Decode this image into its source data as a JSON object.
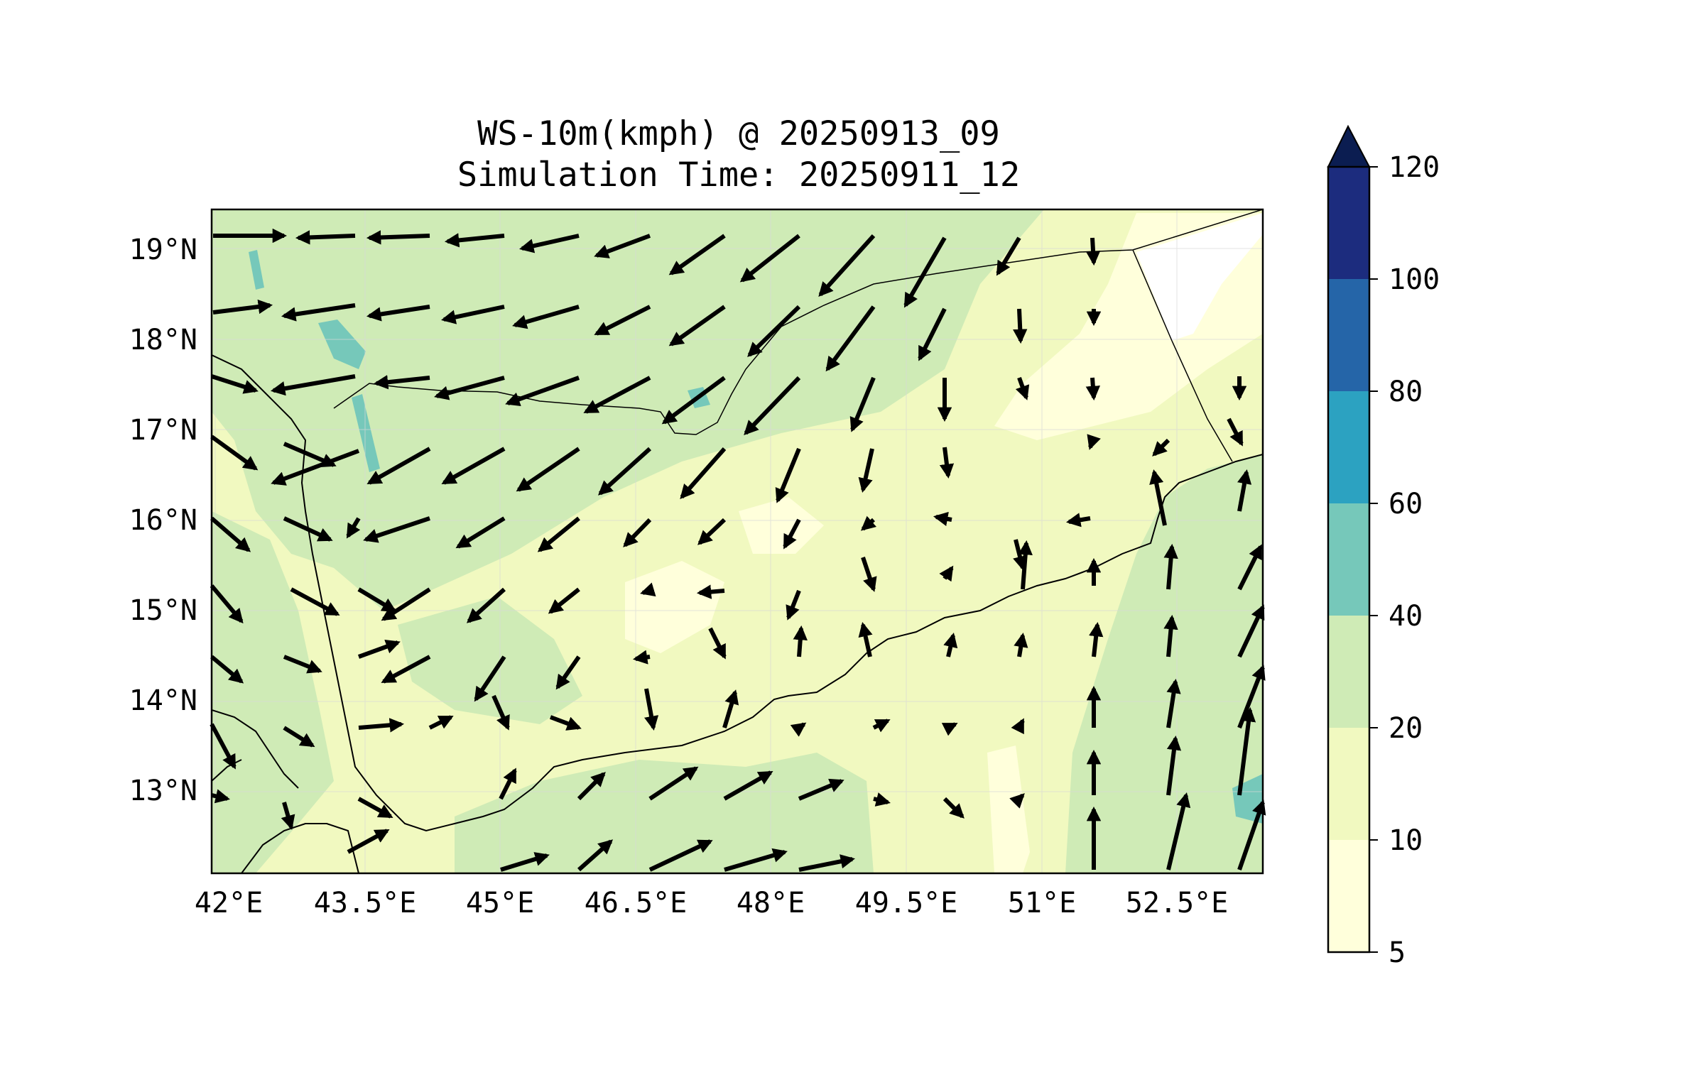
{
  "title": {
    "line1": "WS-10m(kmph) @ 20250913_09",
    "line2": "Simulation Time: 20250911_12"
  },
  "map": {
    "lon_range": [
      41.95,
      53.8
    ],
    "lat_range": [
      12.1,
      19.45
    ],
    "lon_ticks": [
      "42°E",
      "43.5°E",
      "45°E",
      "46.5°E",
      "48°E",
      "49.5°E",
      "51°E",
      "52.5°E"
    ],
    "lat_ticks": [
      "19°N",
      "18°N",
      "17°N",
      "16°N",
      "15°N",
      "14°N",
      "13°N"
    ],
    "grid": true,
    "field": "wind speed at 10 m, km/h",
    "vector_field": "wind direction arrows"
  },
  "colorbar": {
    "levels": [
      "120",
      "100",
      "80",
      "60",
      "40",
      "20",
      "10",
      "5"
    ],
    "colors": [
      "#0b1d51",
      "#1c2c7e",
      "#2565a8",
      "#2ca2c1",
      "#76c8ba",
      "#cfebb6",
      "#f1f9c0",
      "#ffffdb"
    ],
    "extend": "max"
  }
}
